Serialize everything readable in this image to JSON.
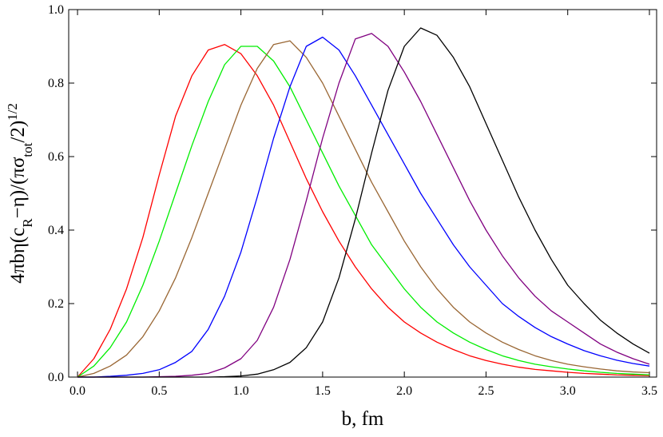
{
  "chart_data": {
    "type": "line",
    "x_label": "b, fm",
    "y_label": [
      {
        "text": "4πbη(c"
      },
      {
        "text": "R",
        "sub": true
      },
      {
        "text": "−η)/(πσ"
      },
      {
        "text": "tot",
        "sub": true
      },
      {
        "text": "/2)"
      },
      {
        "text": "1/2",
        "sup": true
      }
    ],
    "x": [
      0,
      0.1,
      0.2,
      0.3,
      0.4,
      0.5,
      0.6,
      0.7,
      0.8,
      0.9,
      1.0,
      1.1,
      1.2,
      1.3,
      1.4,
      1.5,
      1.6,
      1.7,
      1.8,
      1.9,
      2.0,
      2.1,
      2.2,
      2.3,
      2.4,
      2.5,
      2.6,
      2.7,
      2.8,
      2.9,
      3.0,
      3.1,
      3.2,
      3.3,
      3.4,
      3.5
    ],
    "series": [
      {
        "color": "#ff0000",
        "values": [
          0,
          0.05,
          0.13,
          0.24,
          0.38,
          0.55,
          0.71,
          0.82,
          0.89,
          0.905,
          0.88,
          0.82,
          0.74,
          0.64,
          0.54,
          0.45,
          0.37,
          0.3,
          0.24,
          0.19,
          0.15,
          0.12,
          0.095,
          0.075,
          0.058,
          0.045,
          0.035,
          0.027,
          0.021,
          0.017,
          0.013,
          0.01,
          0.008,
          0.006,
          0.005,
          0.004
        ]
      },
      {
        "color": "#00ee00",
        "values": [
          0,
          0.03,
          0.08,
          0.15,
          0.25,
          0.37,
          0.5,
          0.63,
          0.75,
          0.85,
          0.9,
          0.9,
          0.86,
          0.79,
          0.7,
          0.61,
          0.52,
          0.44,
          0.36,
          0.3,
          0.24,
          0.19,
          0.15,
          0.12,
          0.095,
          0.075,
          0.058,
          0.045,
          0.035,
          0.028,
          0.022,
          0.017,
          0.013,
          0.01,
          0.008,
          0.006
        ]
      },
      {
        "color": "#996633",
        "values": [
          0,
          0.01,
          0.03,
          0.06,
          0.11,
          0.18,
          0.27,
          0.38,
          0.5,
          0.62,
          0.74,
          0.84,
          0.905,
          0.915,
          0.87,
          0.8,
          0.71,
          0.62,
          0.53,
          0.45,
          0.37,
          0.3,
          0.24,
          0.19,
          0.15,
          0.12,
          0.095,
          0.075,
          0.058,
          0.045,
          0.035,
          0.028,
          0.022,
          0.017,
          0.014,
          0.012
        ]
      },
      {
        "color": "#0000ff",
        "values": [
          0,
          0,
          0.002,
          0.005,
          0.01,
          0.02,
          0.04,
          0.07,
          0.13,
          0.22,
          0.34,
          0.49,
          0.65,
          0.79,
          0.9,
          0.925,
          0.89,
          0.82,
          0.74,
          0.66,
          0.58,
          0.5,
          0.43,
          0.36,
          0.3,
          0.25,
          0.2,
          0.165,
          0.135,
          0.11,
          0.09,
          0.072,
          0.058,
          0.046,
          0.037,
          0.03
        ]
      },
      {
        "color": "#800080",
        "values": [
          0,
          0,
          0,
          0,
          0,
          0.001,
          0.002,
          0.005,
          0.01,
          0.025,
          0.05,
          0.1,
          0.19,
          0.32,
          0.48,
          0.65,
          0.8,
          0.92,
          0.935,
          0.9,
          0.83,
          0.75,
          0.66,
          0.57,
          0.48,
          0.4,
          0.33,
          0.27,
          0.22,
          0.18,
          0.15,
          0.12,
          0.09,
          0.068,
          0.05,
          0.035
        ]
      },
      {
        "color": "#000000",
        "values": [
          0,
          0,
          0,
          0,
          0,
          0,
          0,
          0,
          0,
          0.001,
          0.003,
          0.008,
          0.02,
          0.04,
          0.08,
          0.15,
          0.27,
          0.43,
          0.61,
          0.78,
          0.9,
          0.95,
          0.93,
          0.87,
          0.79,
          0.69,
          0.59,
          0.49,
          0.4,
          0.32,
          0.25,
          0.2,
          0.155,
          0.12,
          0.09,
          0.065
        ]
      }
    ],
    "xlim": [
      -0.054,
      3.544
    ],
    "ylim": [
      0,
      1
    ],
    "xticks": [
      {
        "value": 0,
        "label": "0.0"
      },
      {
        "value": 0.5,
        "label": "0.5"
      },
      {
        "value": 1,
        "label": "1.0"
      },
      {
        "value": 1.5,
        "label": "1.5"
      },
      {
        "value": 2,
        "label": "2.0"
      },
      {
        "value": 2.5,
        "label": "2.5"
      },
      {
        "value": 3,
        "label": "3.0"
      },
      {
        "value": 3.5,
        "label": "3.5"
      }
    ],
    "yticks": [
      {
        "value": 0,
        "label": "0.0"
      },
      {
        "value": 0.2,
        "label": "0.2"
      },
      {
        "value": 0.4,
        "label": "0.4"
      },
      {
        "value": 0.6,
        "label": "0.6"
      },
      {
        "value": 0.8,
        "label": "0.8"
      },
      {
        "value": 1,
        "label": "1.0"
      }
    ]
  }
}
